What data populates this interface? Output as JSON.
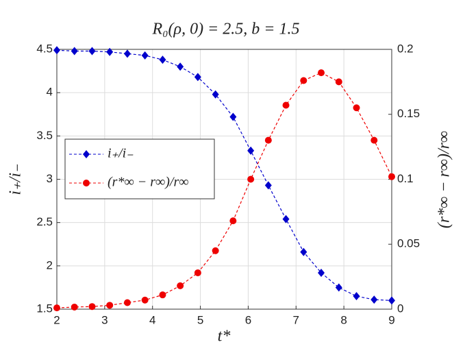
{
  "chart_data": {
    "type": "line",
    "title": "R₀(ρ, 0) = 2.5, b = 1.5",
    "x_label": "t*",
    "y_label": "i₊/i₋",
    "y2_label": "(r*∞ − r∞)/r∞",
    "x": [
      2,
      2.368,
      2.737,
      3.105,
      3.474,
      3.842,
      4.211,
      4.579,
      4.947,
      5.316,
      5.684,
      6.053,
      6.421,
      6.789,
      7.158,
      7.526,
      7.895,
      8.263,
      8.632,
      9
    ],
    "series": [
      {
        "name": "i₊/i₋",
        "color": "#0000cc",
        "marker": "diamond",
        "values": [
          4.49,
          4.48,
          4.48,
          4.47,
          4.45,
          4.43,
          4.38,
          4.3,
          4.18,
          3.98,
          3.72,
          3.33,
          2.93,
          2.54,
          2.16,
          1.92,
          1.75,
          1.65,
          1.61,
          1.6
        ]
      },
      {
        "name": "(r*∞ − r∞)/r∞",
        "color": "#ee0000",
        "marker": "circle",
        "axis": "y2",
        "values": [
          0.001,
          0.0016,
          0.002,
          0.003,
          0.005,
          0.007,
          0.011,
          0.018,
          0.028,
          0.045,
          0.068,
          0.1,
          0.13,
          0.157,
          0.176,
          0.182,
          0.175,
          0.155,
          0.13,
          0.102
        ]
      }
    ],
    "xlim": [
      2,
      9
    ],
    "xticks": [
      2,
      3,
      4,
      5,
      6,
      7,
      8,
      9
    ],
    "ylim": [
      1.5,
      4.5
    ],
    "yticks": [
      1.5,
      2,
      2.5,
      3,
      3.5,
      4,
      4.5
    ],
    "y2lim": [
      0,
      0.2
    ],
    "y2ticks": [
      0,
      0.05,
      0.1,
      0.15,
      0.2
    ],
    "grid": true,
    "legend": "left"
  }
}
